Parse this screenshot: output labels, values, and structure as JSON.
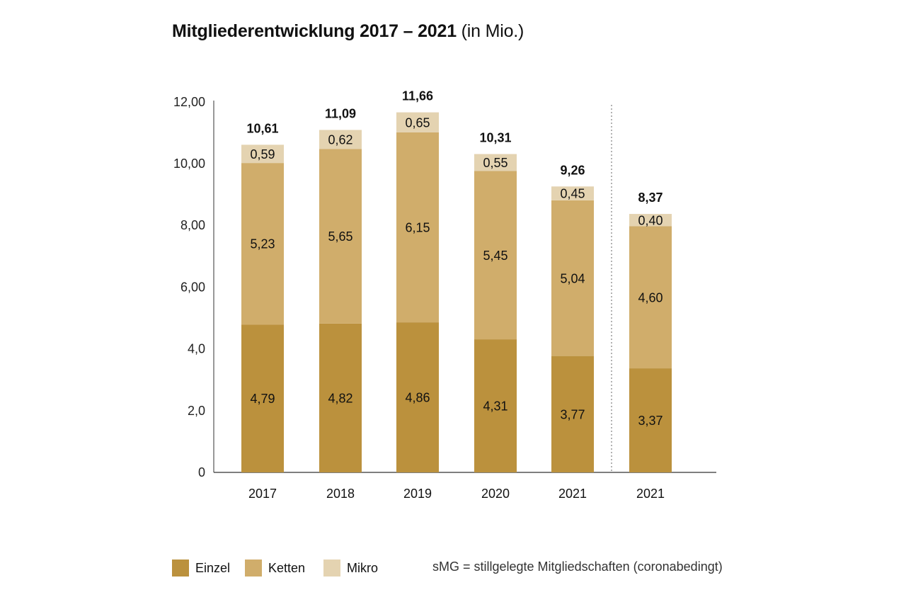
{
  "chart_data": {
    "type": "bar",
    "stacked": true,
    "title": "Mitgliederentwicklung 2017 – 2021",
    "subtitle": "(in Mio.)",
    "categories": [
      "2017",
      "2018",
      "2019",
      "2020",
      "2021",
      "2021"
    ],
    "series": [
      {
        "name": "Einzel",
        "values": [
          4.79,
          4.82,
          4.86,
          4.31,
          3.77,
          3.37
        ],
        "labels": [
          "4,79",
          "4,82",
          "4,86",
          "4,31",
          "3,77",
          "3,37"
        ],
        "color": "#bb913d"
      },
      {
        "name": "Ketten",
        "values": [
          5.23,
          5.65,
          6.15,
          5.45,
          5.04,
          4.6
        ],
        "labels": [
          "5,23",
          "5,65",
          "6,15",
          "5,45",
          "5,04",
          "4,60"
        ],
        "color": "#d0ad6b"
      },
      {
        "name": "Mikro",
        "values": [
          0.59,
          0.62,
          0.65,
          0.55,
          0.45,
          0.4
        ],
        "labels": [
          "0,59",
          "0,62",
          "0,65",
          "0,55",
          "0,45",
          "0,40"
        ],
        "color": "#e4d3b1"
      }
    ],
    "totals": [
      "10,61",
      "11,09",
      "11,66",
      "10,31",
      "9,26",
      "8,37"
    ],
    "ylim": [
      0,
      12
    ],
    "yticks": [
      0,
      2,
      4,
      6,
      8,
      10,
      12
    ],
    "ytick_labels": [
      "0",
      "2,0",
      "4,0",
      "6,00",
      "8,00",
      "10,00",
      "12,00"
    ],
    "xlabel": "",
    "ylabel": "",
    "grid": false,
    "separator_before_index": 5,
    "legend_position": "bottom-left",
    "footnote": "sMG = stillgelegte Mitgliedschaften (coronabedingt)"
  }
}
